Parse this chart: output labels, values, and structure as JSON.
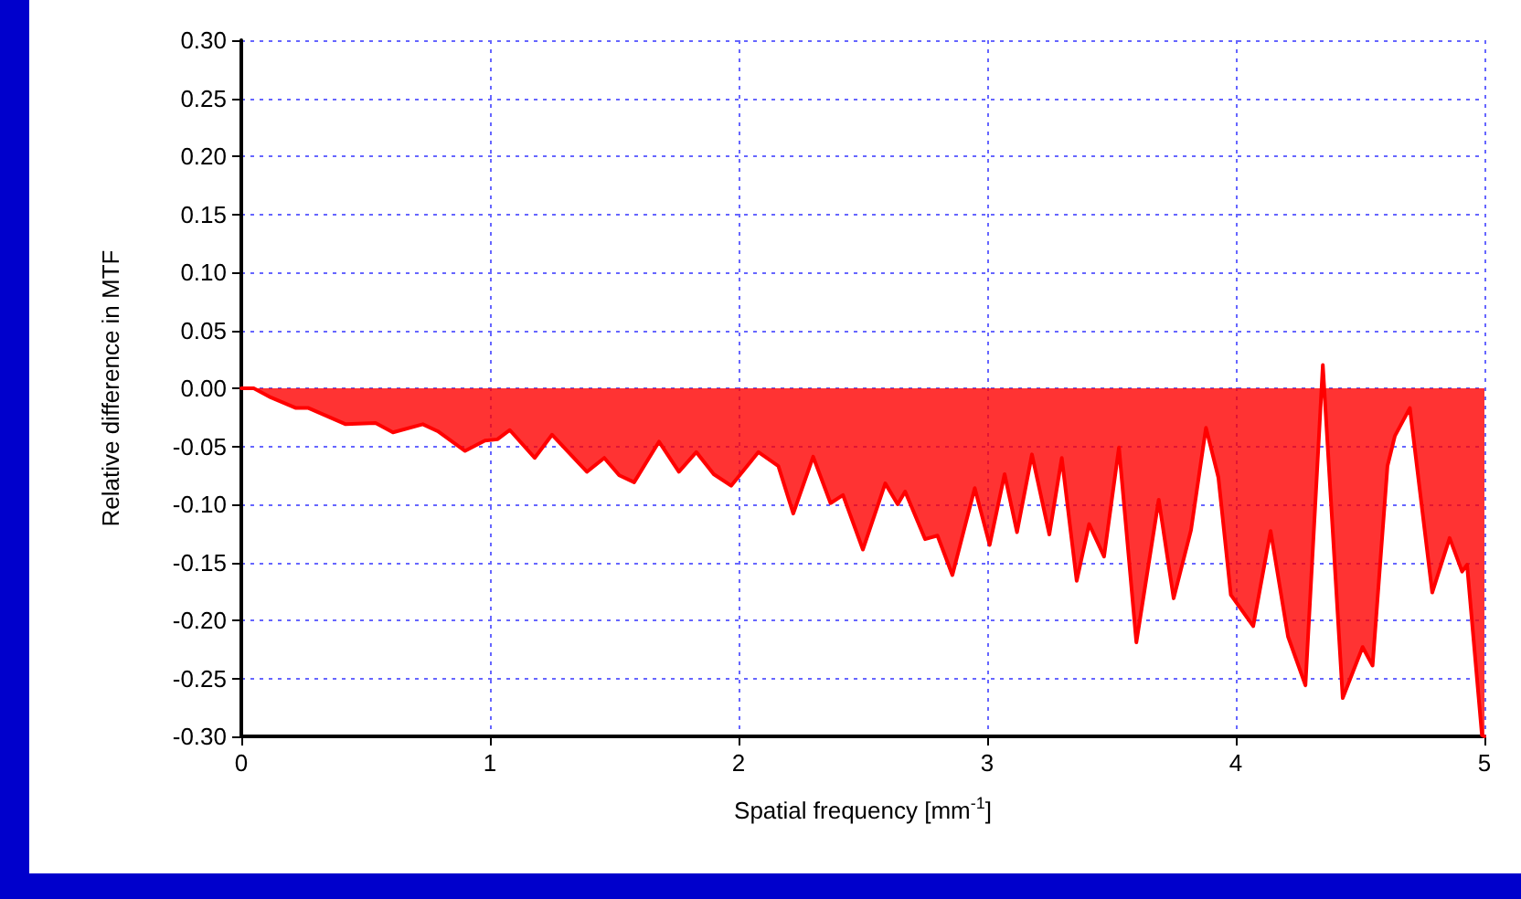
{
  "chart_data": {
    "type": "area",
    "xlabel": "Spatial frequency [mm$^{-1}$]",
    "ylabel": "Relative difference in MTF",
    "x": [
      0,
      0.05,
      0.12,
      0.22,
      0.27,
      0.42,
      0.54,
      0.61,
      0.73,
      0.79,
      0.9,
      0.98,
      1.03,
      1.08,
      1.18,
      1.25,
      1.39,
      1.46,
      1.52,
      1.58,
      1.68,
      1.76,
      1.83,
      1.9,
      1.97,
      2.08,
      2.16,
      2.22,
      2.3,
      2.37,
      2.42,
      2.5,
      2.59,
      2.64,
      2.67,
      2.75,
      2.8,
      2.86,
      2.95,
      3.01,
      3.07,
      3.12,
      3.18,
      3.25,
      3.3,
      3.36,
      3.41,
      3.47,
      3.53,
      3.6,
      3.69,
      3.75,
      3.82,
      3.88,
      3.93,
      3.98,
      4.07,
      4.14,
      4.21,
      4.28,
      4.35,
      4.43,
      4.51,
      4.55,
      4.61,
      4.64,
      4.7,
      4.79,
      4.86,
      4.91,
      4.93,
      4.99,
      5
    ],
    "series": [
      {
        "color": "#ff0000",
        "values": [
          0,
          0,
          -0.008,
          -0.017,
          -0.017,
          -0.031,
          -0.03,
          -0.038,
          -0.031,
          -0.037,
          -0.054,
          -0.045,
          -0.044,
          -0.036,
          -0.06,
          -0.04,
          -0.072,
          -0.06,
          -0.075,
          -0.081,
          -0.046,
          -0.072,
          -0.055,
          -0.074,
          -0.084,
          -0.055,
          -0.067,
          -0.108,
          -0.059,
          -0.099,
          -0.092,
          -0.139,
          -0.082,
          -0.1,
          -0.089,
          -0.13,
          -0.127,
          -0.161,
          -0.086,
          -0.135,
          -0.074,
          -0.124,
          -0.057,
          -0.126,
          -0.06,
          -0.166,
          -0.117,
          -0.145,
          -0.051,
          -0.219,
          -0.096,
          -0.181,
          -0.122,
          -0.034,
          -0.077,
          -0.178,
          -0.205,
          -0.123,
          -0.214,
          -0.256,
          0.02,
          -0.267,
          -0.223,
          -0.239,
          -0.067,
          -0.041,
          -0.017,
          -0.176,
          -0.129,
          -0.158,
          -0.152,
          -0.299,
          -0.3
        ]
      }
    ],
    "xlim": [
      0,
      5
    ],
    "xticks": [
      0,
      1,
      2,
      3,
      4,
      5
    ],
    "ylim": [
      -0.3,
      0.3
    ],
    "yticks": [
      {
        "value": -0.3,
        "label": "-0.30"
      },
      {
        "value": -0.25,
        "label": "-0.25"
      },
      {
        "value": -0.2,
        "label": "-0.20"
      },
      {
        "value": -0.15,
        "label": "-0.15"
      },
      {
        "value": -0.1,
        "label": "-0.10"
      },
      {
        "value": -0.05,
        "label": "-0.05"
      },
      {
        "value": 0,
        "label": "0.00"
      },
      {
        "value": 0.05,
        "label": "0.05"
      },
      {
        "value": 0.1,
        "label": "0.10"
      },
      {
        "value": 0.15,
        "label": "0.15"
      },
      {
        "value": 0.2,
        "label": "0.20"
      },
      {
        "value": 0.25,
        "label": "0.25"
      },
      {
        "value": 0.3,
        "label": "0.30"
      }
    ],
    "grid": true,
    "line_style": "solid"
  }
}
